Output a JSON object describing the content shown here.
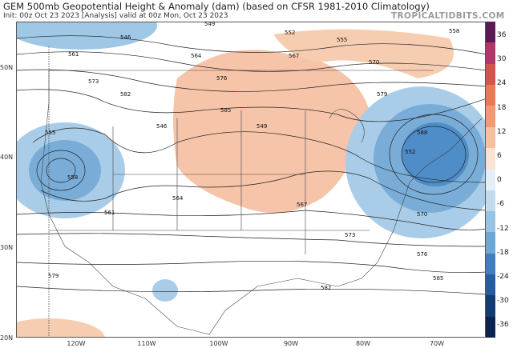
{
  "header": {
    "title": "GEM 500mb Geopotential Height & Anomaly (dam) (based on CFSR 1981-2010 Climatology)",
    "subtitle": "Init: 00z Oct 23 2023   [Analysis]   valid at 00z Mon, Oct 23 2023",
    "brand": "TROPICALTIDBITS.COM"
  },
  "map": {
    "lat_labels": [
      "50N",
      "40N",
      "30N",
      "20N"
    ],
    "lon_labels": [
      "120W",
      "110W",
      "100W",
      "90W",
      "80W",
      "70W"
    ],
    "contour_labels": [
      "546",
      "549",
      "552",
      "555",
      "558",
      "561",
      "564",
      "567",
      "570",
      "573",
      "576",
      "579",
      "582",
      "585",
      "588"
    ],
    "colors": {
      "positive": "#f4b899",
      "negative": "#6ea6d6",
      "land": "#ffffff",
      "border": "#444444"
    }
  },
  "colorbar": {
    "ticks": [
      "36",
      "30",
      "24",
      "18",
      "12",
      "6",
      "0",
      "-6",
      "-12",
      "-18",
      "-24",
      "-30",
      "-36"
    ],
    "colors": [
      "#5c1a55",
      "#b1376b",
      "#d4534a",
      "#e87a55",
      "#f09a72",
      "#f6c09f",
      "#fbe3d3",
      "#e3eff8",
      "#c2dcee",
      "#99c3e2",
      "#6ea6d6",
      "#3f7fbe",
      "#255d9e",
      "#123c74",
      "#0a2350"
    ]
  }
}
